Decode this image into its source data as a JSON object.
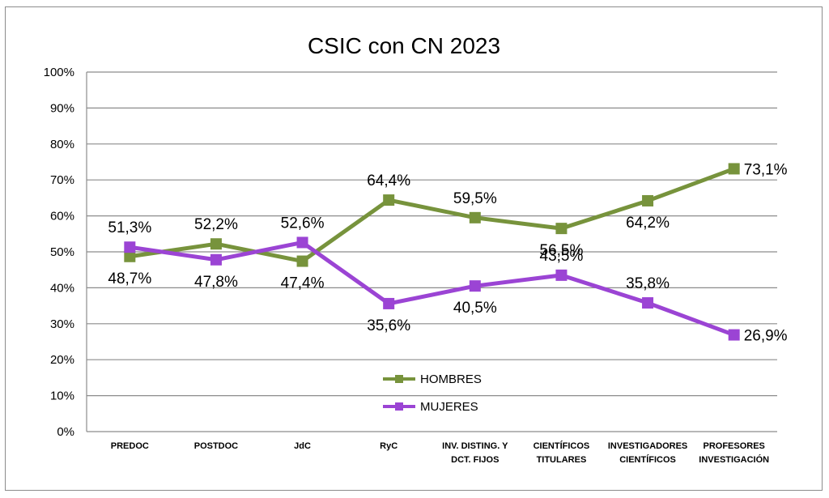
{
  "chart_data": {
    "type": "line",
    "title": "CSIC con CN 2023",
    "categories": [
      [
        "PREDOC"
      ],
      [
        "POSTDOC"
      ],
      [
        "JdC"
      ],
      [
        "RyC"
      ],
      [
        "INV. DISTING. Y",
        "DCT. FIJOS"
      ],
      [
        "CIENTÍFICOS",
        "TITULARES"
      ],
      [
        "INVESTIGADORES",
        "CIENTÍFICOS"
      ],
      [
        "PROFESORES",
        "INVESTIGACIÓN"
      ]
    ],
    "yticks": [
      "0%",
      "10%",
      "20%",
      "30%",
      "40%",
      "50%",
      "60%",
      "70%",
      "80%",
      "90%",
      "100%"
    ],
    "ylim": [
      0,
      100
    ],
    "grid": true,
    "legend_position": "bottom-center",
    "series": [
      {
        "name": "HOMBRES",
        "color": "#77933c",
        "values": [
          48.7,
          52.2,
          47.4,
          64.4,
          59.5,
          56.5,
          64.2,
          73.1
        ],
        "labels": [
          "48,7%",
          "52,2%",
          "47,4%",
          "64,4%",
          "59,5%",
          "56,5%",
          "64,2%",
          "73,1%"
        ],
        "label_pos": [
          "below",
          "above",
          "below",
          "above",
          "above",
          "below",
          "below",
          "right"
        ]
      },
      {
        "name": "MUJERES",
        "color": "#9b44d4",
        "values": [
          51.3,
          47.8,
          52.6,
          35.6,
          40.5,
          43.5,
          35.8,
          26.9
        ],
        "labels": [
          "51,3%",
          "47,8%",
          "52,6%",
          "35,6%",
          "40,5%",
          "43,5%",
          "35,8%",
          "26,9%"
        ],
        "label_pos": [
          "above",
          "below",
          "above",
          "below",
          "below",
          "above",
          "above",
          "right"
        ]
      }
    ]
  }
}
